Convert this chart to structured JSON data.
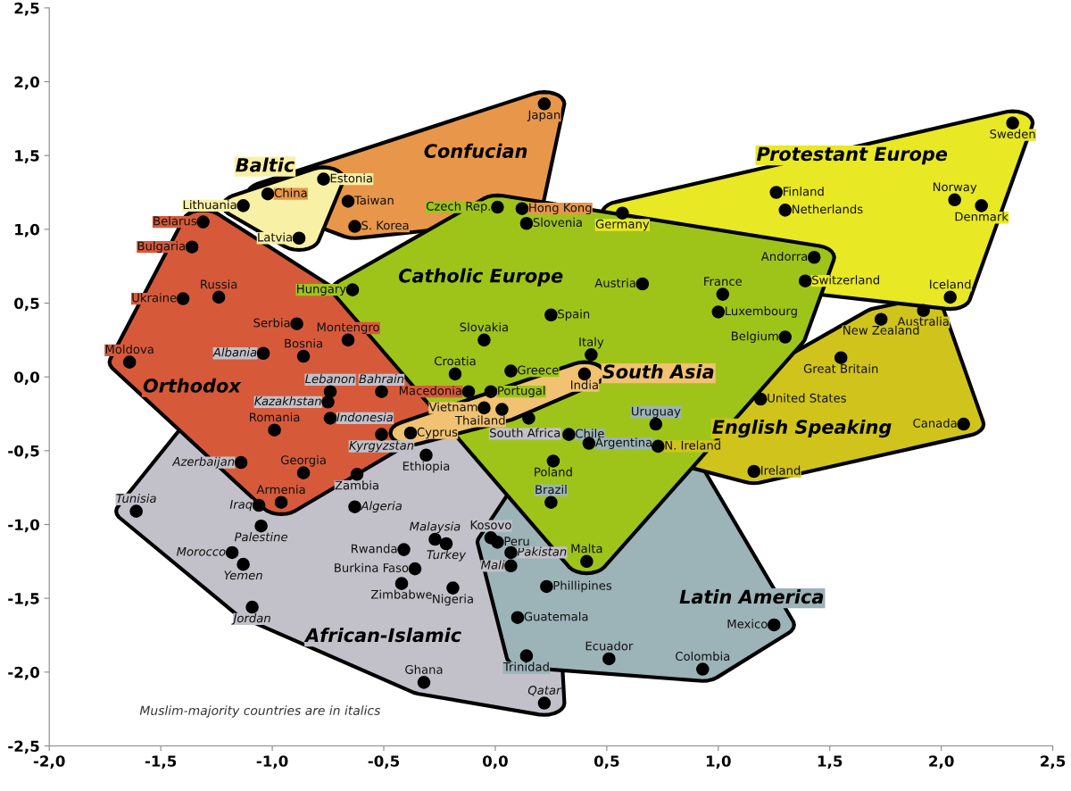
{
  "chart_data": {
    "type": "scatter",
    "xlim": [
      -2.0,
      2.5
    ],
    "ylim": [
      -2.5,
      2.5
    ],
    "xticks": [
      {
        "value": -2.0,
        "label": "-2,0"
      },
      {
        "value": -1.5,
        "label": "-1,5"
      },
      {
        "value": -1.0,
        "label": "-1,0"
      },
      {
        "value": -0.5,
        "label": "-0,5"
      },
      {
        "value": 0.0,
        "label": "0,0"
      },
      {
        "value": 0.5,
        "label": "0,5"
      },
      {
        "value": 1.0,
        "label": "1,0"
      },
      {
        "value": 1.5,
        "label": "1,5"
      },
      {
        "value": 2.0,
        "label": "2,0"
      },
      {
        "value": 2.5,
        "label": "2,5"
      }
    ],
    "yticks": [
      {
        "value": -2.5,
        "label": "-2,5"
      },
      {
        "value": -2.0,
        "label": "-2,0"
      },
      {
        "value": -1.5,
        "label": "-1,5"
      },
      {
        "value": -1.0,
        "label": "-1,0"
      },
      {
        "value": -0.5,
        "label": "-0,5"
      },
      {
        "value": 0.0,
        "label": "0,0"
      },
      {
        "value": 0.5,
        "label": "0,5"
      },
      {
        "value": 1.0,
        "label": "1,0"
      },
      {
        "value": 1.5,
        "label": "1,5"
      },
      {
        "value": 2.0,
        "label": "2,0"
      },
      {
        "value": 2.5,
        "label": "2,5"
      }
    ],
    "grid": false,
    "legend": false,
    "marker": "circle",
    "annotations": [
      "Muslim-majority countries are in italics"
    ],
    "series": [
      {
        "name": "African-Islamic",
        "color": "#000000",
        "x": [
          -1.04,
          -0.74,
          -0.75,
          -0.74,
          -0.51,
          -0.51,
          -0.31,
          -0.62,
          -0.63,
          -1.14,
          -1.61,
          -1.06,
          -1.05,
          -1.18,
          -1.13,
          -1.09,
          -0.27,
          -0.22,
          -0.02,
          -0.41,
          -0.36,
          -0.42,
          -0.19,
          0.07,
          0.07,
          -0.32,
          0.22,
          0.15
        ],
        "values": [
          0.16,
          -0.1,
          -0.17,
          -0.28,
          -0.1,
          -0.39,
          -0.53,
          -0.66,
          -0.88,
          -0.58,
          -0.91,
          -0.87,
          -1.01,
          -1.19,
          -1.27,
          -1.56,
          -1.1,
          -1.13,
          -1.09,
          -1.17,
          -1.3,
          -1.4,
          -1.43,
          -1.19,
          -1.28,
          -2.07,
          -2.21,
          -0.28
        ],
        "value_labels": [
          "Albania",
          "Lebanon",
          "Kazakhstan",
          "Indonesia",
          "Bahrain",
          "Kyrgyzstan",
          "Ethiopia",
          "Zambia",
          "Algeria",
          "Azerbaijan",
          "Tunisia",
          "Iraq",
          "Palestine",
          "Morocco",
          "Yemen",
          "Jordan",
          "Malaysia",
          "Turkey",
          "Kosovo",
          "Rwanda",
          "Burkina Faso",
          "Zimbabwe",
          "Nigeria",
          "Pakistan",
          "Mali",
          "Ghana",
          "Qatar",
          "South Africa"
        ]
      },
      {
        "name": "Latin America",
        "color": "#000000",
        "x": [
          0.72,
          0.33,
          0.42,
          0.25,
          0.01,
          0.23,
          0.1,
          0.51,
          0.93,
          1.25,
          0.14
        ],
        "values": [
          -0.32,
          -0.39,
          -0.45,
          -0.85,
          -1.12,
          -1.42,
          -1.63,
          -1.91,
          -1.98,
          -1.68,
          -1.89
        ],
        "value_labels": [
          "Uruguay",
          "Chile",
          "Argentina",
          "Brazil",
          "Peru",
          "Phillipines",
          "Guatemala",
          "Ecuador",
          "Colombia",
          "Mexico",
          "Trinidad"
        ]
      },
      {
        "name": "English Speaking",
        "color": "#000000",
        "x": [
          1.92,
          1.73,
          1.55,
          1.19,
          2.1,
          1.16,
          0.73
        ],
        "values": [
          0.45,
          0.39,
          0.13,
          -0.15,
          -0.32,
          -0.64,
          -0.47
        ],
        "value_labels": [
          "Australia",
          "New Zealand",
          "Great Britain",
          "United States",
          "Canada",
          "Ireland",
          "N. Ireland"
        ]
      },
      {
        "name": "Protestant Europe",
        "color": "#000000",
        "x": [
          2.32,
          1.26,
          1.3,
          0.57,
          2.06,
          2.18,
          2.04,
          1.39
        ],
        "values": [
          1.72,
          1.25,
          1.13,
          1.11,
          1.2,
          1.16,
          0.54,
          0.65
        ],
        "value_labels": [
          "Sweden",
          "Finland",
          "Netherlands",
          "Germany",
          "Norway",
          "Denmark",
          "Iceland",
          "Switzerland"
        ]
      },
      {
        "name": "Confucian",
        "color": "#000000",
        "x": [
          0.22,
          -1.02,
          -0.66,
          -0.63,
          0.12
        ],
        "values": [
          1.85,
          1.24,
          1.19,
          1.02,
          1.14
        ],
        "value_labels": [
          "Japan",
          "China",
          "Taiwan",
          "S. Korea",
          "Hong Kong"
        ]
      },
      {
        "name": "Baltic",
        "color": "#000000",
        "x": [
          -0.77,
          -1.13,
          -0.88
        ],
        "values": [
          1.34,
          1.16,
          0.94
        ],
        "value_labels": [
          "Estonia",
          "Lithuania",
          "Latvia"
        ]
      },
      {
        "name": "Orthodox",
        "color": "#000000",
        "x": [
          -1.31,
          -1.36,
          -1.4,
          -1.24,
          -0.89,
          -0.66,
          -1.64,
          -0.86,
          -0.12,
          -0.99,
          -0.86,
          -0.96
        ],
        "values": [
          1.05,
          0.88,
          0.53,
          0.54,
          0.36,
          0.25,
          0.1,
          0.14,
          -0.1,
          -0.36,
          -0.65,
          -0.85
        ],
        "value_labels": [
          "Belarus",
          "Bulgaria",
          "Ukraine",
          "Russia",
          "Serbia",
          "Montengro",
          "Moldova",
          "Bosnia",
          "Macedonia",
          "Romania",
          "Georgia",
          "Armenia"
        ]
      },
      {
        "name": "Catholic Europe",
        "color": "#000000",
        "x": [
          0.01,
          0.14,
          -0.64,
          0.66,
          1.02,
          1.0,
          1.43,
          0.25,
          -0.05,
          1.3,
          0.43,
          -0.18,
          0.07,
          -0.02,
          0.26,
          0.41
        ],
        "values": [
          1.15,
          1.04,
          0.59,
          0.63,
          0.56,
          0.44,
          0.81,
          0.42,
          0.25,
          0.27,
          0.15,
          0.02,
          0.04,
          -0.1,
          -0.57,
          -1.25
        ],
        "value_labels": [
          "Czech Rep.",
          "Slovenia",
          "Hungary",
          "Austria",
          "France",
          "Luxembourg",
          "Andorra",
          "Spain",
          "Slovakia",
          "Belgium",
          "Italy",
          "Croatia",
          "Greece",
          "Portugal",
          "Poland",
          "Malta"
        ]
      },
      {
        "name": "South Asia",
        "color": "#000000",
        "x": [
          0.4,
          -0.05,
          0.03,
          -0.38
        ],
        "values": [
          0.02,
          -0.21,
          -0.22,
          -0.38
        ],
        "value_labels": [
          "India",
          "Vietnam",
          "Thailand",
          "Cyprus"
        ]
      }
    ]
  }
}
